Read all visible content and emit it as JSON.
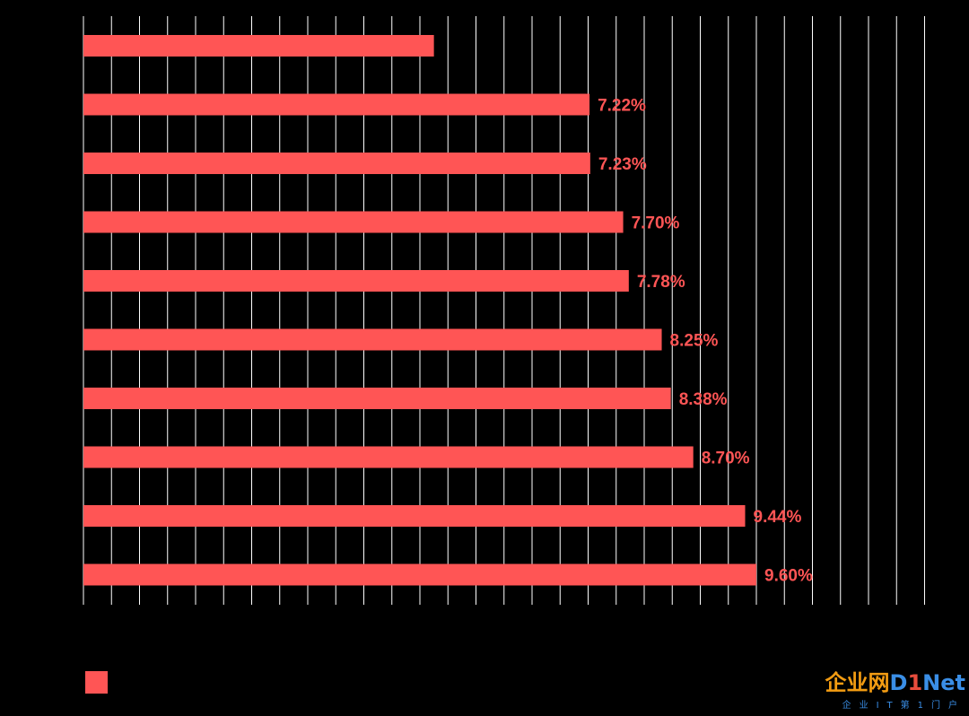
{
  "chart_data": {
    "type": "bar",
    "orientation": "horizontal",
    "title": "",
    "xlabel": "",
    "ylabel": "",
    "xlim": [
      0,
      12
    ],
    "grid": true,
    "legend": "bottom-left",
    "bar_color": "#ff5555",
    "label_color": "#ff5555",
    "background": "#000000",
    "categories": [
      "",
      "",
      "",
      "",
      "",
      "",
      "",
      "",
      "",
      ""
    ],
    "values": [
      5.0,
      7.22,
      7.23,
      7.7,
      7.78,
      8.25,
      8.38,
      8.7,
      9.44,
      9.6
    ],
    "labels": [
      "",
      "7.22%",
      "7.23%",
      "7.70%",
      "7.78%",
      "8.25%",
      "8.38%",
      "8.70%",
      "9.44%",
      "9.60%"
    ],
    "series": [
      {
        "values": [
          5.0,
          7.22,
          7.23,
          7.7,
          7.78,
          8.25,
          8.38,
          8.7,
          9.44,
          9.6
        ]
      }
    ]
  },
  "watermark": {
    "brand_cn": "企业网",
    "brand_d": "D",
    "brand_one": "1",
    "brand_net": "Net",
    "tagline": "企业IT第1门户"
  }
}
